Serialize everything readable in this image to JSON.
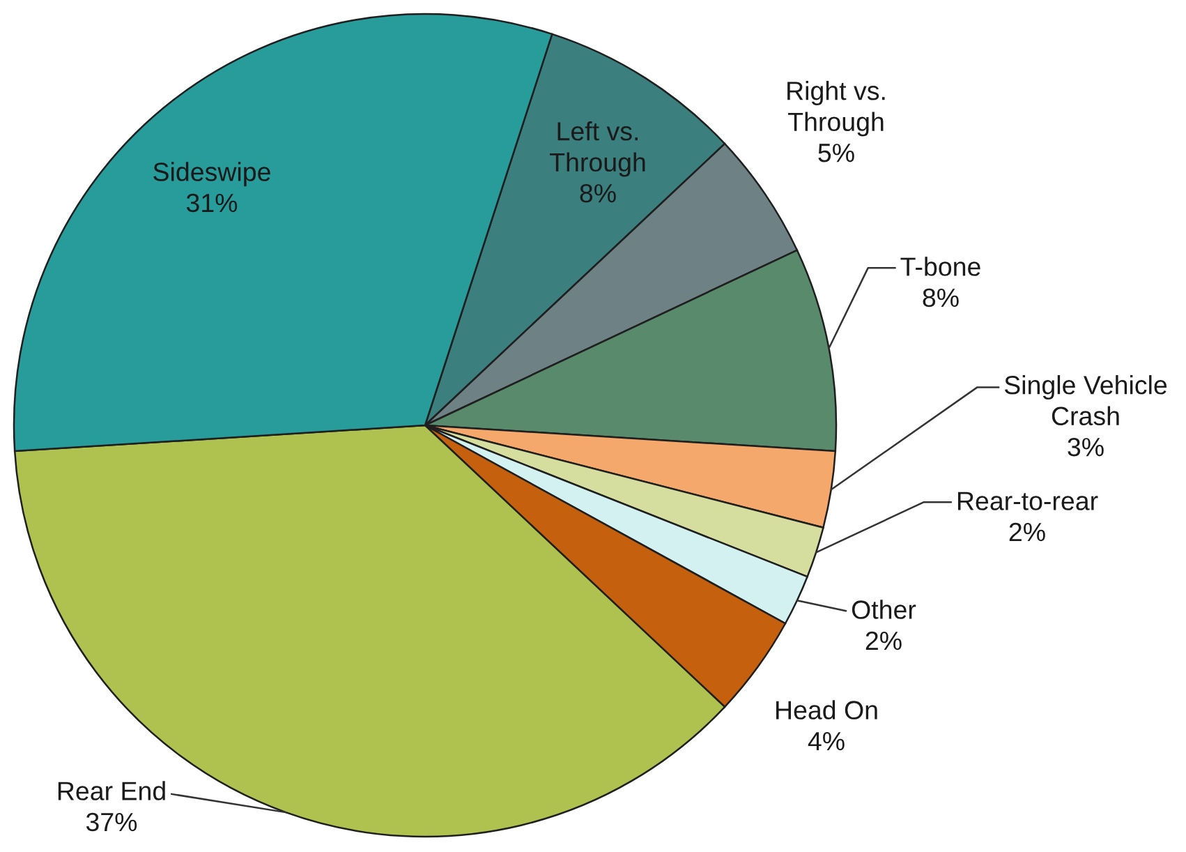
{
  "chart_data": {
    "type": "pie",
    "categories": [
      "Left vs. Through",
      "Right vs. Through",
      "T-bone",
      "Single Vehicle Crash",
      "Rear-to-rear",
      "Other",
      "Head On",
      "Rear End",
      "Sideswipe"
    ],
    "values": [
      8,
      5,
      8,
      3,
      2,
      2,
      4,
      37,
      31
    ],
    "colors": [
      "#3b7f7e",
      "#6e8185",
      "#588a6b",
      "#f4a86c",
      "#d5dd9f",
      "#d4f1f2",
      "#c5600f",
      "#afc250",
      "#289b9b"
    ],
    "value_labels": [
      "8%",
      "5%",
      "8%",
      "3%",
      "2%",
      "2%",
      "4%",
      "37%",
      "31%"
    ]
  }
}
